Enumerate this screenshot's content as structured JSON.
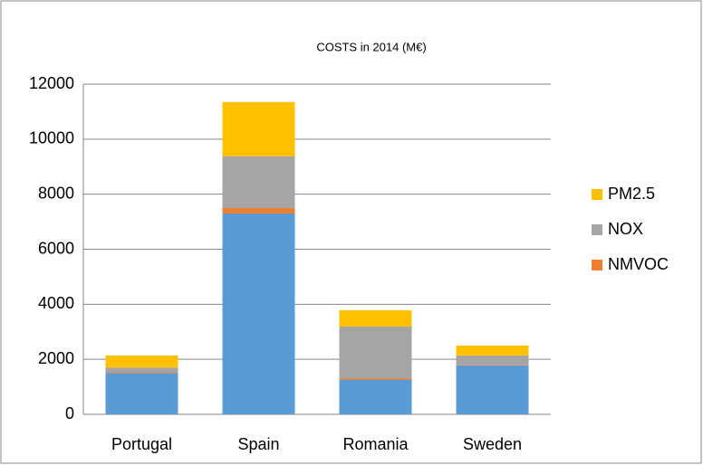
{
  "chart_data": {
    "type": "stacked_bar",
    "title": "COSTS in 2014 (M€)",
    "categories": [
      "Portugal",
      "Spain",
      "Romania",
      "Sweden"
    ],
    "series": [
      {
        "name": null,
        "color": "#5b9bd5",
        "values": [
          1500,
          7300,
          1250,
          1780
        ]
      },
      {
        "name": "NMVOC",
        "color": "#ed7d31",
        "values": [
          30,
          200,
          50,
          20
        ]
      },
      {
        "name": "NOX",
        "color": "#a5a5a5",
        "values": [
          170,
          1880,
          1890,
          340
        ]
      },
      {
        "name": "PM2.5",
        "color": "#ffc000",
        "values": [
          440,
          1970,
          590,
          360
        ]
      }
    ],
    "ylim": [
      0,
      12000
    ],
    "yticks": [
      0,
      2000,
      4000,
      6000,
      8000,
      10000,
      12000
    ],
    "grid": true,
    "legend": "right"
  }
}
